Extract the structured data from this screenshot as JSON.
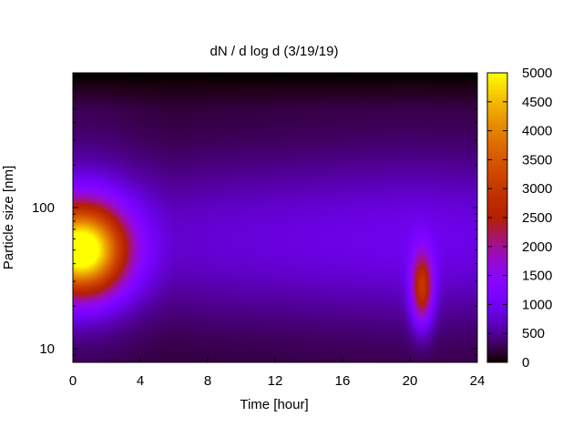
{
  "chart_data": {
    "type": "heatmap",
    "title": "dN / d log d (3/19/19)",
    "xlabel": "Time [hour]",
    "ylabel": "Particle size [nm]",
    "xlim": [
      0,
      24
    ],
    "x_ticks": [
      0,
      4,
      8,
      12,
      16,
      20,
      24
    ],
    "y_scale": "log",
    "ylim": [
      8,
      900
    ],
    "y_ticks": [
      10,
      100
    ],
    "colorbar": {
      "ticks": [
        0,
        500,
        1000,
        1500,
        2000,
        2500,
        3000,
        3500,
        4000,
        4500,
        5000
      ],
      "range": [
        0,
        5000
      ],
      "colormap": "gnuplot (black-purple-red-yellow)"
    },
    "features": [
      {
        "x": 0.5,
        "y": 50,
        "value": 4600,
        "sx": 1.8,
        "sy_decades": 0.22
      },
      {
        "x": 20.7,
        "y": 27,
        "value": 2300,
        "sx": 0.45,
        "sy_decades": 0.18
      }
    ],
    "background_levels": [
      {
        "hour": 0,
        "level": 900
      },
      {
        "hour": 2,
        "level": 850
      },
      {
        "hour": 4,
        "level": 700
      },
      {
        "hour": 6,
        "level": 600
      },
      {
        "hour": 8,
        "level": 650
      },
      {
        "hour": 12,
        "level": 700
      },
      {
        "hour": 16,
        "level": 750
      },
      {
        "hour": 20,
        "level": 800
      },
      {
        "hour": 24,
        "level": 750
      }
    ],
    "colors": {
      "scale_low": "#000000",
      "scale_mid": "#8a00ff",
      "scale_red": "#c02000",
      "scale_high": "#ffff00"
    }
  }
}
